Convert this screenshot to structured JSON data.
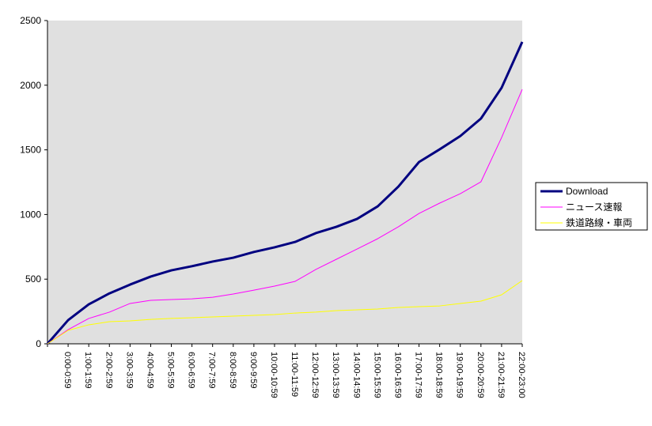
{
  "chart_data": {
    "type": "line",
    "categories": [
      null,
      "0:00-0:59",
      "1:00-1:59",
      "2:00-2:59",
      "3:00-3:59",
      "4:00-4:59",
      "5:00-5:59",
      "6:00-6:59",
      "7:00-7:59",
      "8:00-8:59",
      "9:00-9:59",
      "10:00-10:59",
      "11:00-11:59",
      "12:00-12:59",
      "13:00-13:59",
      "14:00-14:59",
      "15:00-15:59",
      "16:00-16:59",
      "17:00-17:59",
      "18:00-18:59",
      "19:00-19:59",
      "20:00-20:59",
      "21:00-21:59",
      "22:00-23:00"
    ],
    "series": [
      {
        "name": "Download",
        "color": "#000080",
        "values": [
          0,
          183,
          305,
          390,
          458,
          520,
          568,
          600,
          636,
          666,
          710,
          746,
          788,
          856,
          905,
          966,
          1063,
          1216,
          1406,
          1504,
          1607,
          1742,
          1980,
          2335
        ]
      },
      {
        "name": "ニュース速報",
        "color": "#ff00ff",
        "values": [
          0,
          110,
          196,
          245,
          312,
          336,
          342,
          348,
          360,
          385,
          415,
          446,
          483,
          575,
          654,
          733,
          813,
          905,
          1008,
          1088,
          1161,
          1253,
          1595,
          1968
        ]
      },
      {
        "name": "鉄道路線・車両",
        "color": "#ffff00",
        "values": [
          0,
          104,
          147,
          171,
          177,
          189,
          196,
          202,
          208,
          214,
          220,
          226,
          238,
          245,
          257,
          263,
          269,
          281,
          287,
          293,
          312,
          330,
          379,
          489
        ]
      }
    ],
    "ylim": [
      0,
      2500
    ],
    "yticks": [
      0,
      500,
      1000,
      1500,
      2000,
      2500
    ],
    "legend": "right",
    "plot_background": "#e0e0e0"
  }
}
